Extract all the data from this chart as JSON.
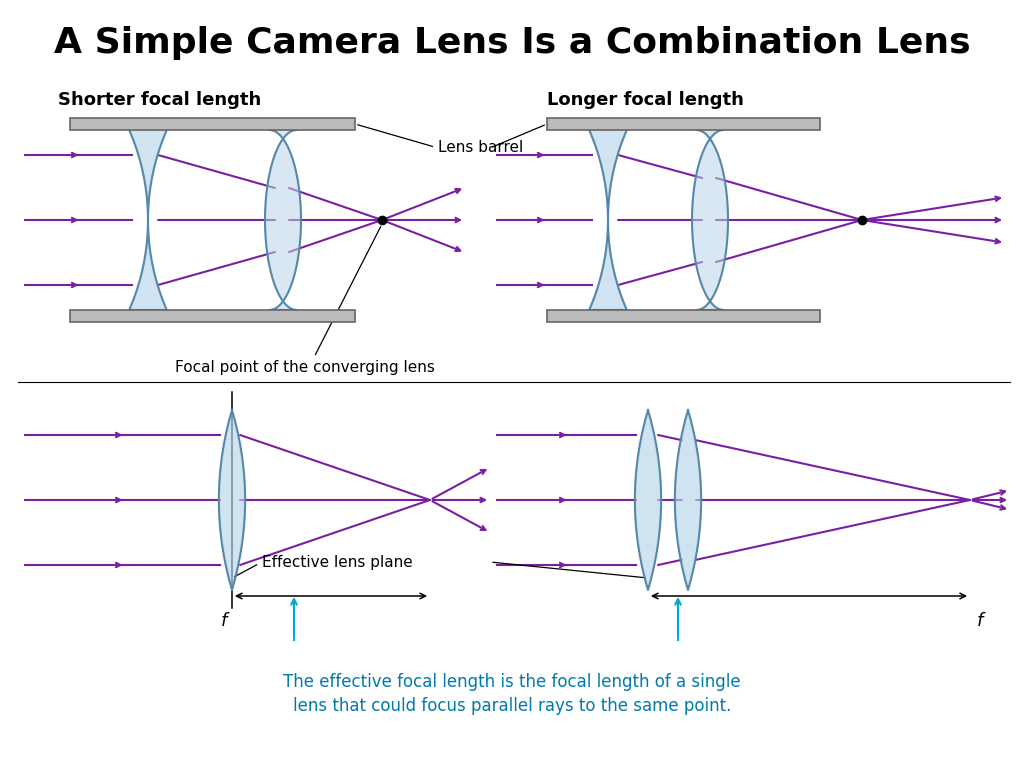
{
  "title": "A Simple Camera Lens Is a Combination Lens",
  "title_fontsize": 26,
  "background_color": "#ffffff",
  "ray_color": "#7B1FA2",
  "lens_color": "#b8d4e8",
  "lens_edge_color": "#5588aa",
  "barrel_color": "#bbbbbb",
  "shorter_label": "Shorter focal length",
  "longer_label": "Longer focal length",
  "focal_point_label": "Focal point of the converging lens",
  "effective_lens_label": "Effective lens plane",
  "f_label": "f",
  "bottom_text_line1": "The effective focal length is the focal length of a single",
  "bottom_text_line2": "lens that could focus parallel rays to the same point.",
  "cyan_color": "#00aacc"
}
